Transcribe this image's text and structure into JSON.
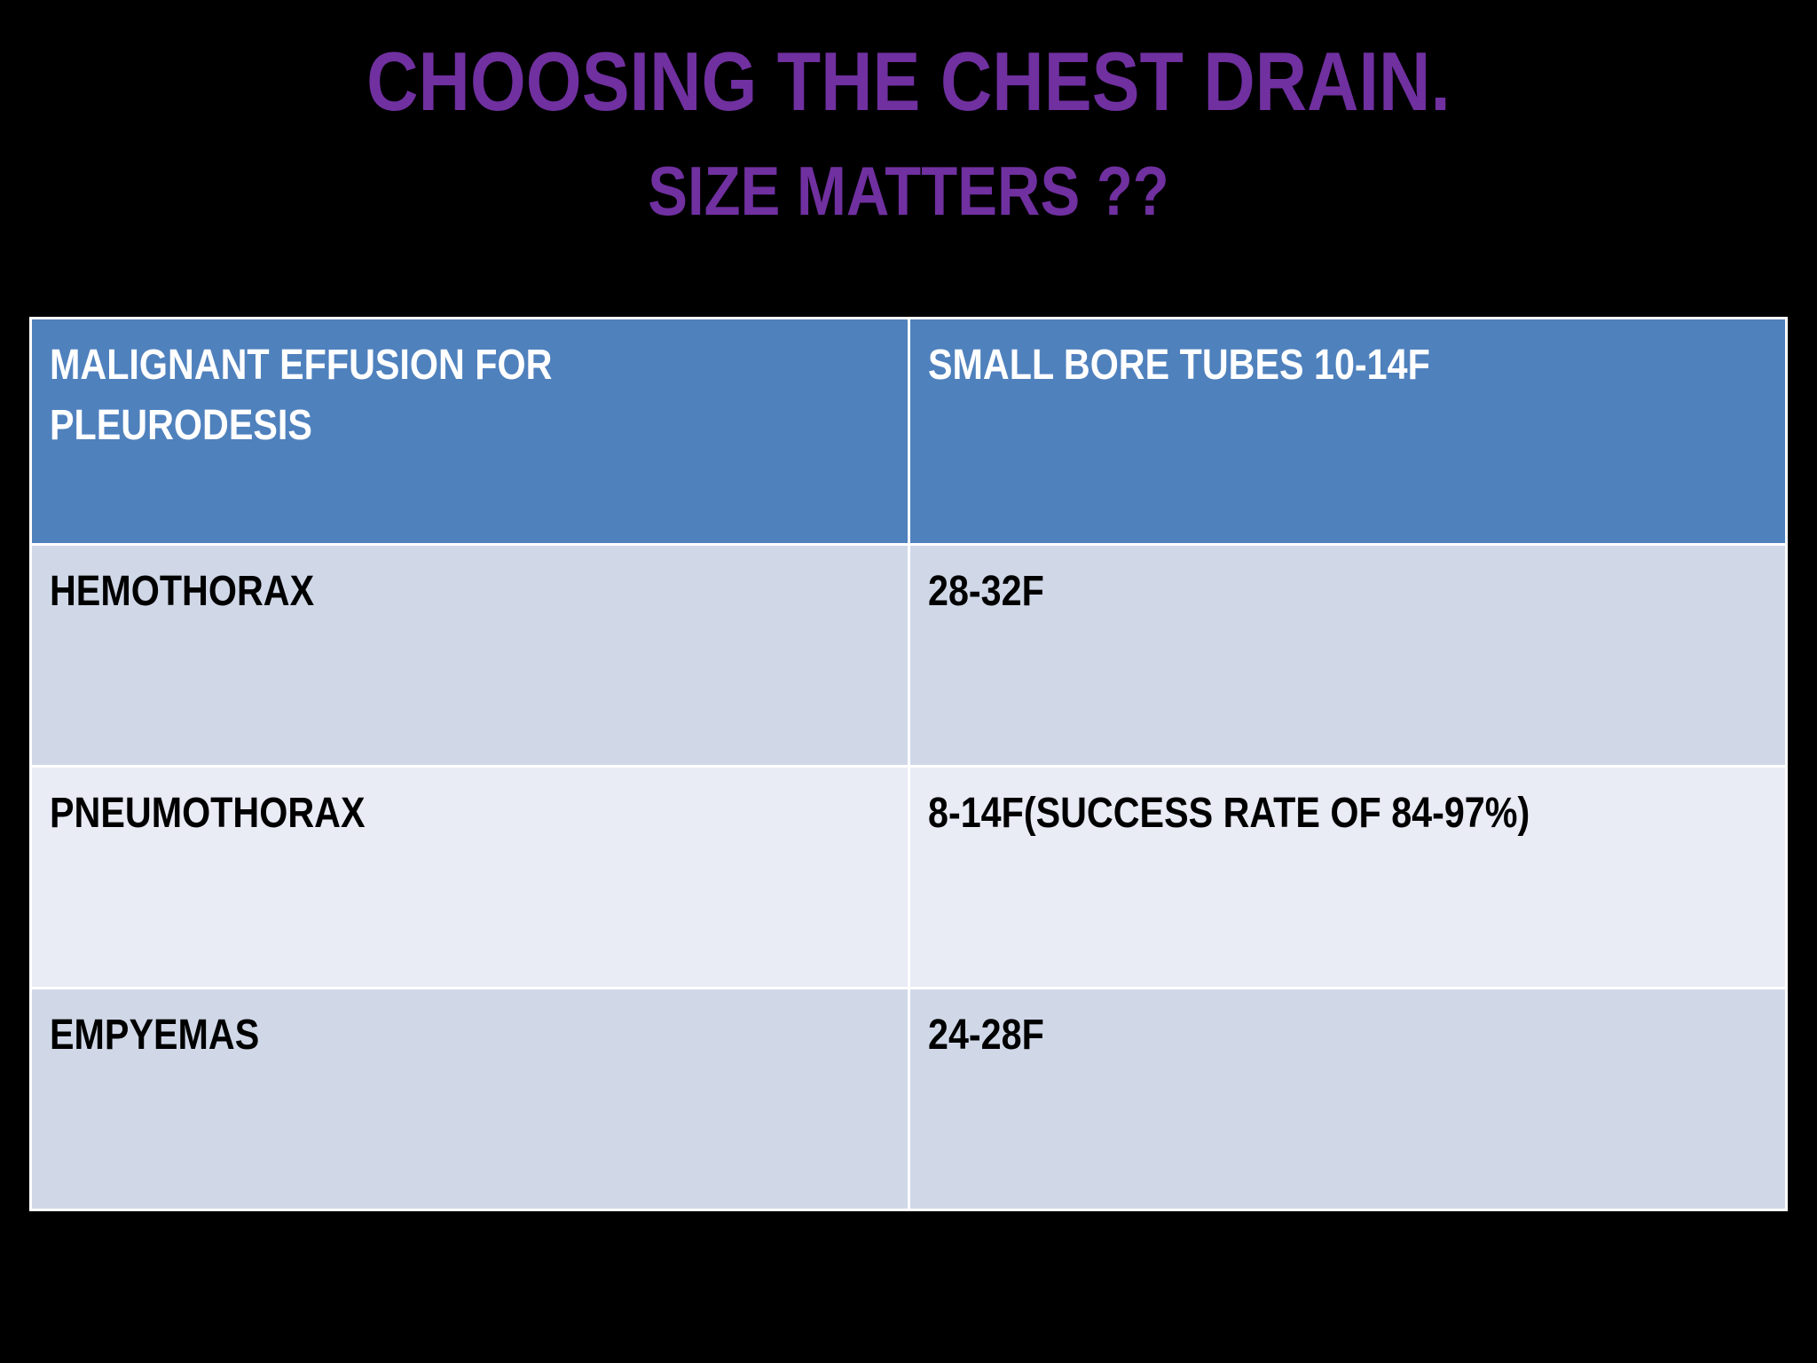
{
  "slide": {
    "title": "CHOOSING THE CHEST DRAIN.",
    "subtitle": "SIZE MATTERS ??",
    "colors": {
      "background": "#000000",
      "title": "#7030a0",
      "header_fill": "#4f81bd",
      "row_fill_odd": "#d0d8e8",
      "row_fill_even": "#e9ebf5"
    }
  },
  "table": {
    "header": {
      "condition_line1": "MALIGNANT EFFUSION FOR",
      "condition_line2": "PLEURODESIS",
      "size": "SMALL BORE TUBES 10-14F"
    },
    "rows": [
      {
        "condition": "HEMOTHORAX",
        "size": "28-32F"
      },
      {
        "condition": "PNEUMOTHORAX",
        "size": "8-14F(SUCCESS RATE OF 84-97%)"
      },
      {
        "condition": "EMPYEMAS",
        "size": "24-28F"
      }
    ]
  }
}
